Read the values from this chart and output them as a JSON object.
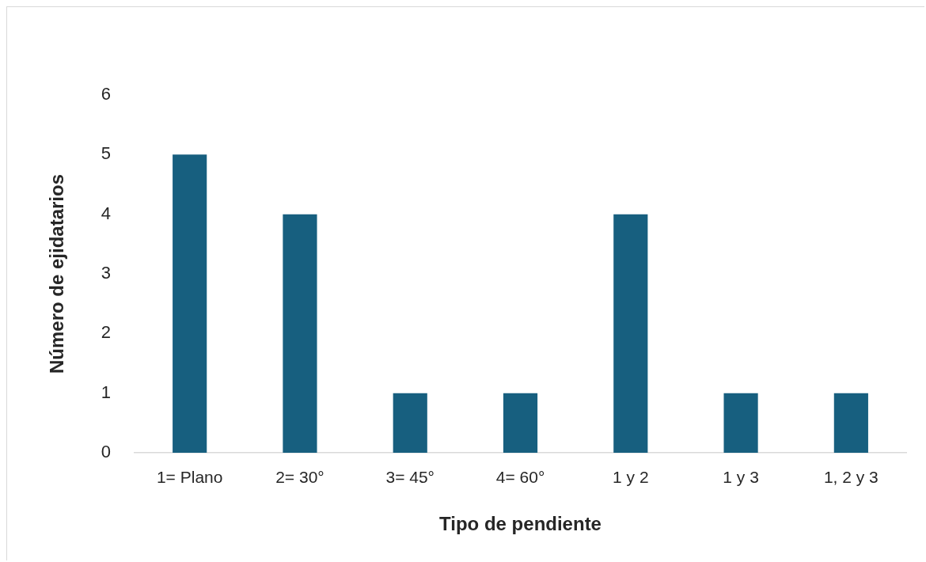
{
  "chart_data": {
    "type": "bar",
    "xlabel": "Tipo de pendiente",
    "ylabel": "Número de ejidatarios",
    "categories": [
      "1= Plano",
      "2= 30°",
      "3= 45°",
      "4= 60°",
      "1 y 2",
      "1 y 3",
      "1, 2 y 3"
    ],
    "values": [
      5,
      4,
      1,
      1,
      4,
      1,
      1
    ],
    "color": "#175f7f",
    "ylim": [
      0,
      6
    ],
    "yticks": [
      0,
      1,
      2,
      3,
      4,
      5,
      6
    ],
    "grid": false,
    "legend": false
  }
}
